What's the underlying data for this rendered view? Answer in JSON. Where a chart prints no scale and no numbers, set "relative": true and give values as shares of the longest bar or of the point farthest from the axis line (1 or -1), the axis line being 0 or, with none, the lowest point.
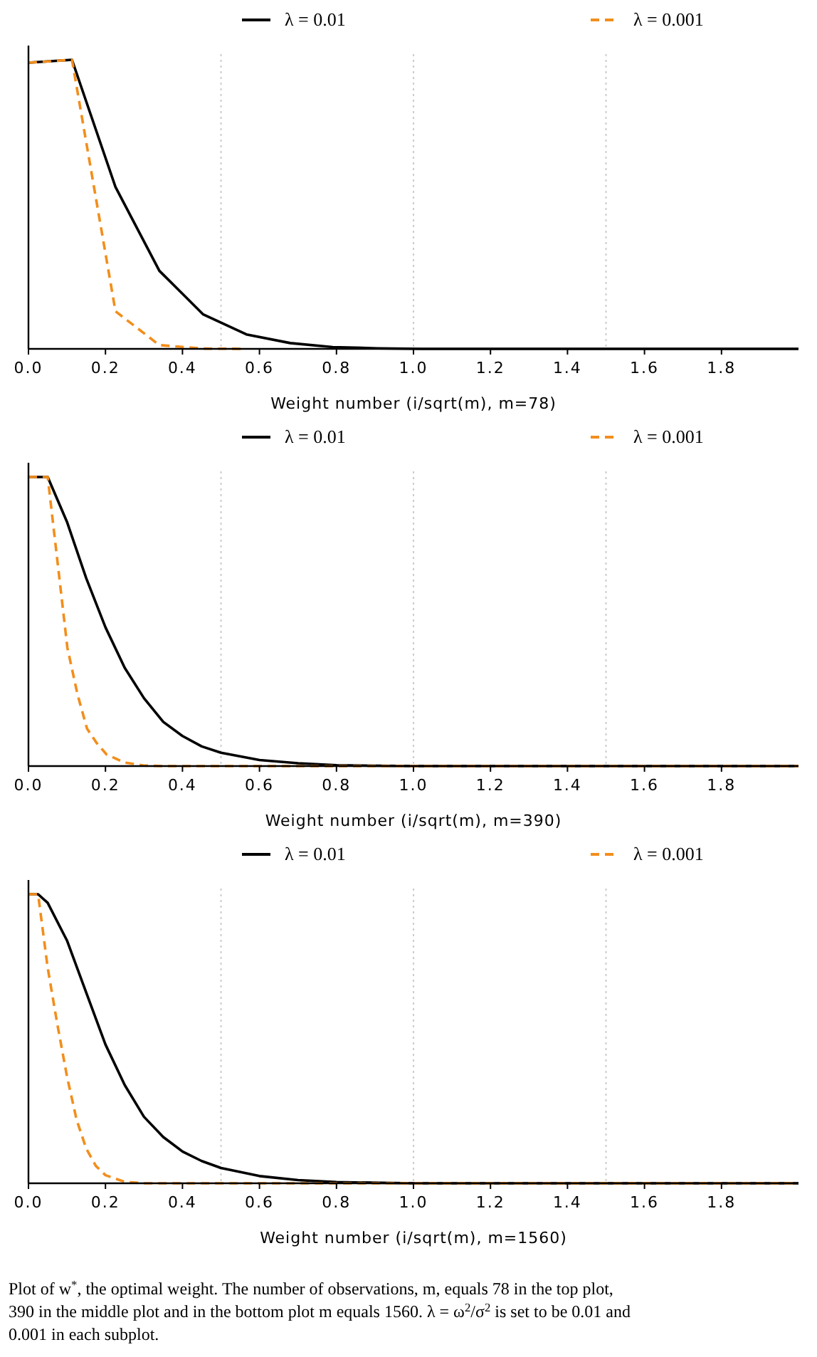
{
  "chart_data": [
    {
      "type": "line",
      "relative": true,
      "xlabel": "Weight number (i/sqrt(m), m=78)",
      "xlim": [
        0,
        2
      ],
      "xticks": [
        {
          "value": 0,
          "label": "0.0"
        },
        {
          "value": 0.2,
          "label": "0.2"
        },
        {
          "value": 0.4,
          "label": "0.4"
        },
        {
          "value": 0.6,
          "label": "0.6"
        },
        {
          "value": 0.8,
          "label": "0.8"
        },
        {
          "value": 1,
          "label": "1.0"
        },
        {
          "value": 1.2,
          "label": "1.2"
        },
        {
          "value": 1.4,
          "label": "1.4"
        },
        {
          "value": 1.6,
          "label": "1.6"
        },
        {
          "value": 1.8,
          "label": "1.8"
        }
      ],
      "legend": "top",
      "grid": false,
      "marker": "none",
      "ref_lines": [
        {
          "axis": "x",
          "value": 0.5,
          "color": "#cccccc",
          "line_style": "dotted"
        },
        {
          "axis": "x",
          "value": 1,
          "color": "#cccccc",
          "line_style": "dotted"
        },
        {
          "axis": "x",
          "value": 1.5,
          "color": "#cccccc",
          "line_style": "dotted"
        }
      ],
      "series": [
        {
          "name": "λ = 0.01",
          "color": "#000000",
          "line_style": "solid",
          "x": [
            0,
            0.113,
            0.226,
            0.34,
            0.453,
            0.566,
            0.68,
            0.79,
            0.906,
            1.02,
            1.13,
            1.5,
            2
          ],
          "values": [
            0.99,
            1,
            0.56,
            0.27,
            0.12,
            0.05,
            0.02,
            0.006,
            0.002,
            0,
            0,
            0,
            0
          ]
        },
        {
          "name": "λ = 0.001",
          "color": "#f28e1c",
          "line_style": "dashed",
          "x": [
            0,
            0.113,
            0.226,
            0.34,
            0.453,
            0.566
          ],
          "values": [
            0.99,
            1,
            0.13,
            0.013,
            0.001,
            0
          ]
        }
      ]
    },
    {
      "type": "line",
      "relative": true,
      "xlabel": "Weight number (i/sqrt(m), m=390)",
      "xlim": [
        0,
        2
      ],
      "xticks": [
        {
          "value": 0,
          "label": "0.0"
        },
        {
          "value": 0.2,
          "label": "0.2"
        },
        {
          "value": 0.4,
          "label": "0.4"
        },
        {
          "value": 0.6,
          "label": "0.6"
        },
        {
          "value": 0.8,
          "label": "0.8"
        },
        {
          "value": 1,
          "label": "1.0"
        },
        {
          "value": 1.2,
          "label": "1.2"
        },
        {
          "value": 1.4,
          "label": "1.4"
        },
        {
          "value": 1.6,
          "label": "1.6"
        },
        {
          "value": 1.8,
          "label": "1.8"
        }
      ],
      "legend": "top",
      "grid": false,
      "marker": "none",
      "ref_lines": [
        {
          "axis": "x",
          "value": 0.5,
          "color": "#cccccc",
          "line_style": "dotted"
        },
        {
          "axis": "x",
          "value": 1,
          "color": "#cccccc",
          "line_style": "dotted"
        },
        {
          "axis": "x",
          "value": 1.5,
          "color": "#cccccc",
          "line_style": "dotted"
        }
      ],
      "series": [
        {
          "name": "λ = 0.01",
          "color": "#000000",
          "line_style": "solid",
          "x": [
            0,
            0.05,
            0.1,
            0.15,
            0.2,
            0.25,
            0.3,
            0.35,
            0.4,
            0.45,
            0.5,
            0.6,
            0.7,
            0.8,
            1,
            1.5,
            2
          ],
          "values": [
            1,
            1,
            0.845,
            0.65,
            0.48,
            0.34,
            0.235,
            0.153,
            0.104,
            0.068,
            0.046,
            0.021,
            0.01,
            0.003,
            0,
            0,
            0
          ]
        },
        {
          "name": "λ = 0.001",
          "color": "#f28e1c",
          "line_style": "dashed",
          "x": [
            0,
            0.05,
            0.076,
            0.101,
            0.127,
            0.152,
            0.177,
            0.203,
            0.25,
            0.3,
            0.35,
            1,
            2
          ],
          "values": [
            1,
            1,
            0.7,
            0.41,
            0.25,
            0.13,
            0.08,
            0.04,
            0.012,
            0.002,
            0,
            0,
            0
          ]
        }
      ]
    },
    {
      "type": "line",
      "relative": true,
      "xlabel": "Weight number (i/sqrt(m), m=1560)",
      "xlim": [
        0,
        2
      ],
      "xticks": [
        {
          "value": 0,
          "label": "0.0"
        },
        {
          "value": 0.2,
          "label": "0.2"
        },
        {
          "value": 0.4,
          "label": "0.4"
        },
        {
          "value": 0.6,
          "label": "0.6"
        },
        {
          "value": 0.8,
          "label": "0.8"
        },
        {
          "value": 1,
          "label": "1.0"
        },
        {
          "value": 1.2,
          "label": "1.2"
        },
        {
          "value": 1.4,
          "label": "1.4"
        },
        {
          "value": 1.6,
          "label": "1.6"
        },
        {
          "value": 1.8,
          "label": "1.8"
        }
      ],
      "legend": "top",
      "grid": false,
      "marker": "none",
      "ref_lines": [
        {
          "axis": "x",
          "value": 0.5,
          "color": "#cccccc",
          "line_style": "dotted"
        },
        {
          "axis": "x",
          "value": 1,
          "color": "#cccccc",
          "line_style": "dotted"
        },
        {
          "axis": "x",
          "value": 1.5,
          "color": "#cccccc",
          "line_style": "dotted"
        }
      ],
      "annotations": [
        "Plot of w$^{*}$, the optimal weight. The number of observations, m, equals 78 in the top plot, 390 in the middle plot and in the bottom plot m equals 1560. λ = ω$^{2}$/σ$^{2}$ is set to be 0.01 and 0.001 in each subplot."
      ],
      "series": [
        {
          "name": "λ = 0.01",
          "color": "#000000",
          "line_style": "solid",
          "x": [
            0,
            0.025,
            0.05,
            0.1,
            0.15,
            0.2,
            0.25,
            0.3,
            0.35,
            0.4,
            0.45,
            0.5,
            0.6,
            0.7,
            0.8,
            1,
            1.5,
            2
          ],
          "values": [
            1,
            1,
            0.97,
            0.84,
            0.66,
            0.48,
            0.34,
            0.23,
            0.16,
            0.11,
            0.077,
            0.053,
            0.025,
            0.011,
            0.004,
            0,
            0,
            0
          ]
        },
        {
          "name": "λ = 0.001",
          "color": "#f28e1c",
          "line_style": "dashed",
          "x": [
            0,
            0.025,
            0.05,
            0.075,
            0.1,
            0.125,
            0.15,
            0.175,
            0.2,
            0.25,
            0.3,
            1,
            2
          ],
          "values": [
            1,
            1,
            0.745,
            0.55,
            0.37,
            0.22,
            0.12,
            0.06,
            0.028,
            0.005,
            0,
            0,
            0
          ]
        }
      ]
    }
  ]
}
